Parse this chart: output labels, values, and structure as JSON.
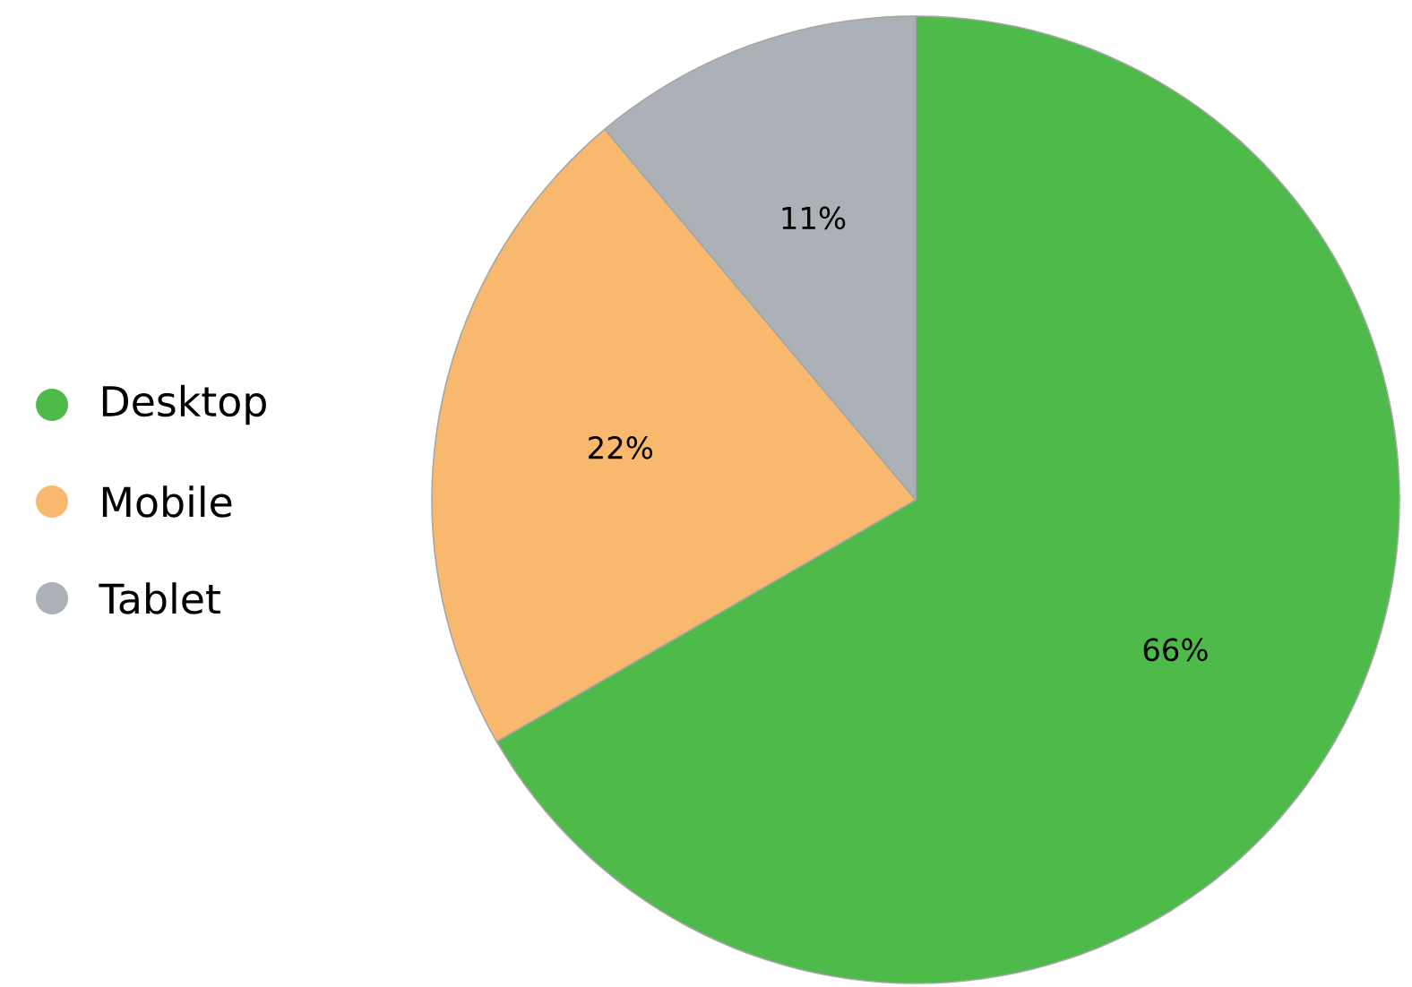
{
  "chart_data": {
    "type": "pie",
    "categories": [
      "Desktop",
      "Mobile",
      "Tablet"
    ],
    "values": [
      66,
      22,
      11
    ],
    "colors": [
      "#4dba4a",
      "#f8b96f",
      "#abb1b6"
    ],
    "value_labels": [
      "66%",
      "22%",
      "11%"
    ],
    "legend": "left"
  }
}
